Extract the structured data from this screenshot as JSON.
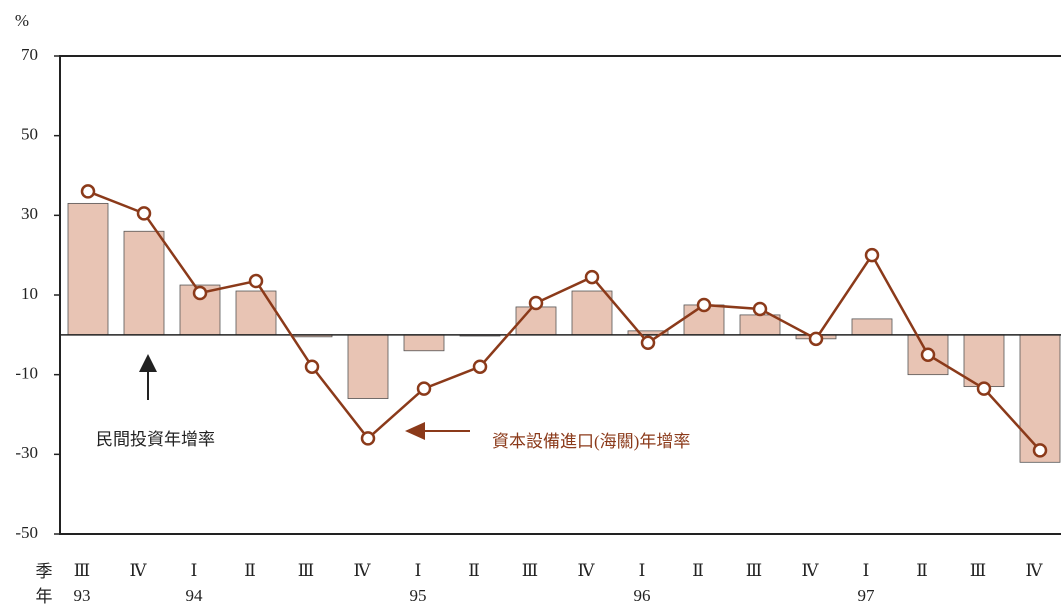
{
  "chart_data": {
    "type": "bar_line",
    "y_label": "%",
    "row_labels": [
      "季",
      "年"
    ],
    "categories": [
      "Ⅲ",
      "Ⅳ",
      "Ⅰ",
      "Ⅱ",
      "Ⅲ",
      "Ⅳ",
      "Ⅰ",
      "Ⅱ",
      "Ⅲ",
      "Ⅳ",
      "Ⅰ",
      "Ⅱ",
      "Ⅲ",
      "Ⅳ",
      "Ⅰ",
      "Ⅱ",
      "Ⅲ",
      "Ⅳ"
    ],
    "years": [
      "93",
      null,
      "94",
      null,
      null,
      null,
      "95",
      null,
      null,
      null,
      "96",
      null,
      null,
      null,
      "97",
      null,
      null,
      null
    ],
    "series": [
      {
        "name": "民間投資年增率",
        "kind": "bar",
        "color": "#e8c4b4",
        "values": [
          33,
          26,
          12.5,
          11,
          -0.5,
          -16,
          -4,
          -0.3,
          7,
          11,
          1,
          7.5,
          5,
          -1,
          4,
          -10,
          -13,
          -32
        ]
      },
      {
        "name": "資本設備進口(海關)年增率",
        "kind": "line",
        "color": "#8b3a1a",
        "values": [
          36,
          30.5,
          10.5,
          13.5,
          -8,
          -26,
          -13.5,
          -8,
          8,
          14.5,
          -2,
          7.5,
          6.5,
          -1,
          20,
          -5,
          -13.5,
          -29
        ]
      }
    ],
    "ylim": [
      -50,
      70
    ],
    "yticks": [
      -50,
      -30,
      -10,
      10,
      30,
      50,
      70
    ]
  }
}
